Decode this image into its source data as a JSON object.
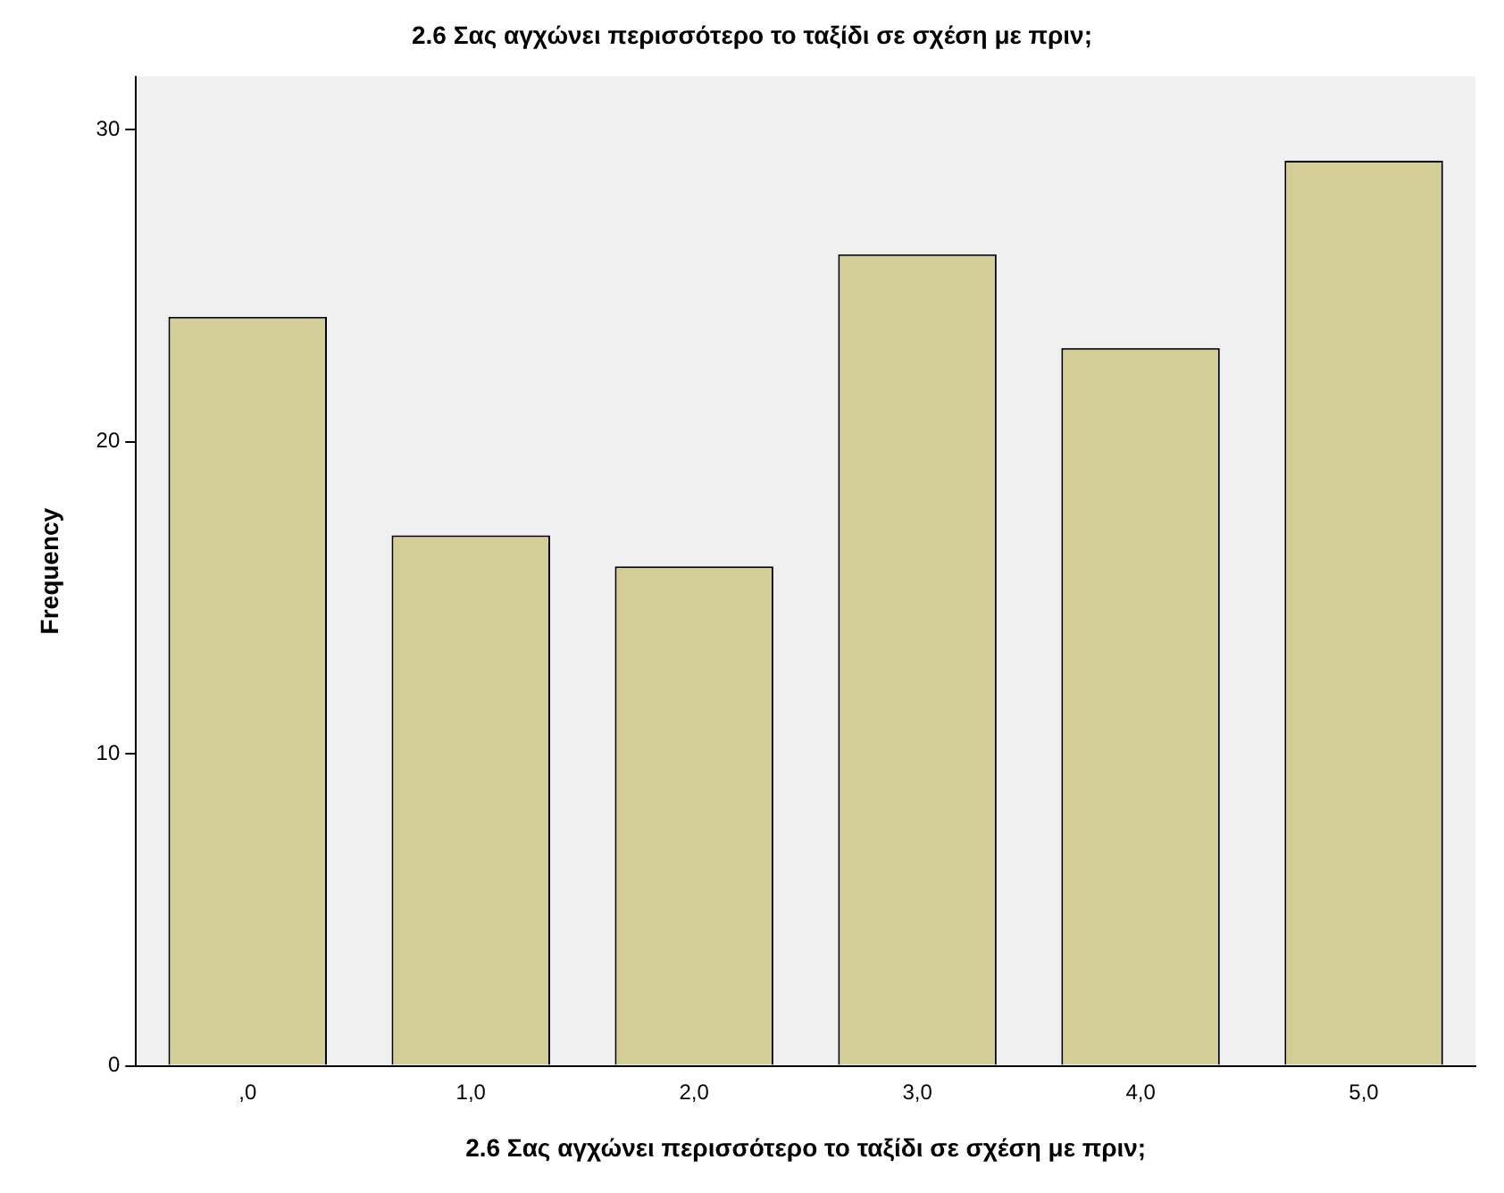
{
  "chart_data": {
    "type": "bar",
    "title": "2.6 Σας αγχώνει περισσότερο το ταξίδι σε σχέση με πριν;",
    "xlabel": "2.6 Σας αγχώνει περισσότερο το ταξίδι σε σχέση με πριν;",
    "ylabel": "Frequency",
    "categories": [
      ",0",
      "1,0",
      "2,0",
      "3,0",
      "4,0",
      "5,0"
    ],
    "values": [
      24,
      17,
      16,
      26,
      23,
      29
    ],
    "color": "#d3ce97",
    "ylim": [
      0,
      31.7
    ],
    "yticks": [
      0,
      10,
      20,
      30
    ],
    "grid": false,
    "legend": false
  }
}
